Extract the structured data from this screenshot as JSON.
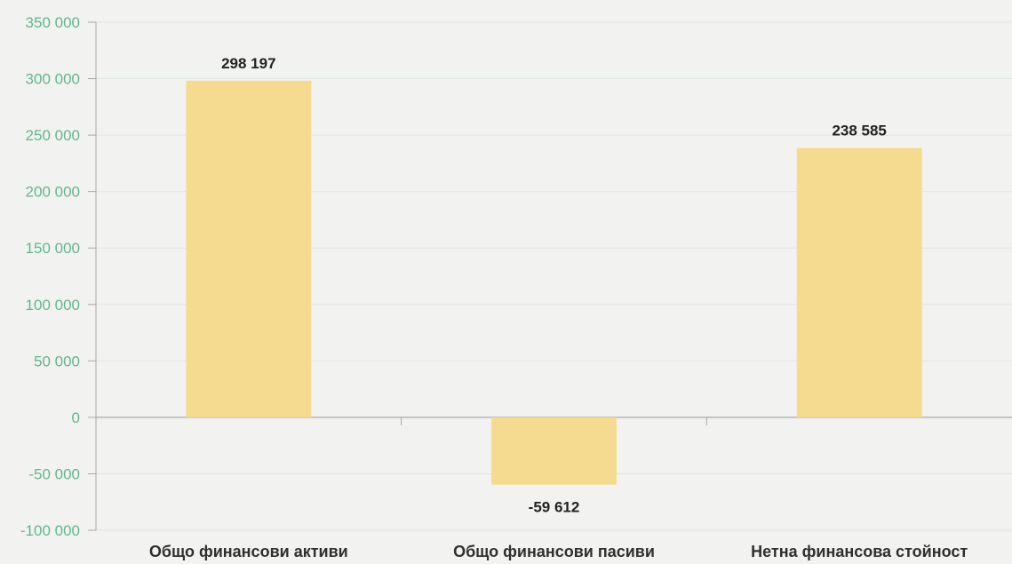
{
  "chart_data": {
    "type": "bar",
    "categories": [
      "Общо финансови активи",
      "Общо финансови пасиви",
      "Нетна финансова стойност"
    ],
    "values": [
      298197,
      -59612,
      238585
    ],
    "data_labels": [
      "298 197",
      "-59 612",
      "238 585"
    ],
    "ylim": [
      -100000,
      350000
    ],
    "yticks": [
      -100000,
      -50000,
      0,
      50000,
      100000,
      150000,
      200000,
      250000,
      300000,
      350000
    ],
    "ytick_labels": [
      "-100 000",
      "-50 000",
      "0",
      "50 000",
      "100 000",
      "150 000",
      "200 000",
      "250 000",
      "300 000",
      "350 000"
    ],
    "grid": true,
    "title": "",
    "xlabel": "",
    "ylabel": ""
  },
  "colors": {
    "background": "#f2f2f0",
    "bar": "#f5db8f",
    "grid": "#dfe6e2",
    "axis": "#a8a8a8",
    "tick_text": "#61b78d",
    "category_text": "#2f2f2f",
    "data_text": "#222222"
  }
}
